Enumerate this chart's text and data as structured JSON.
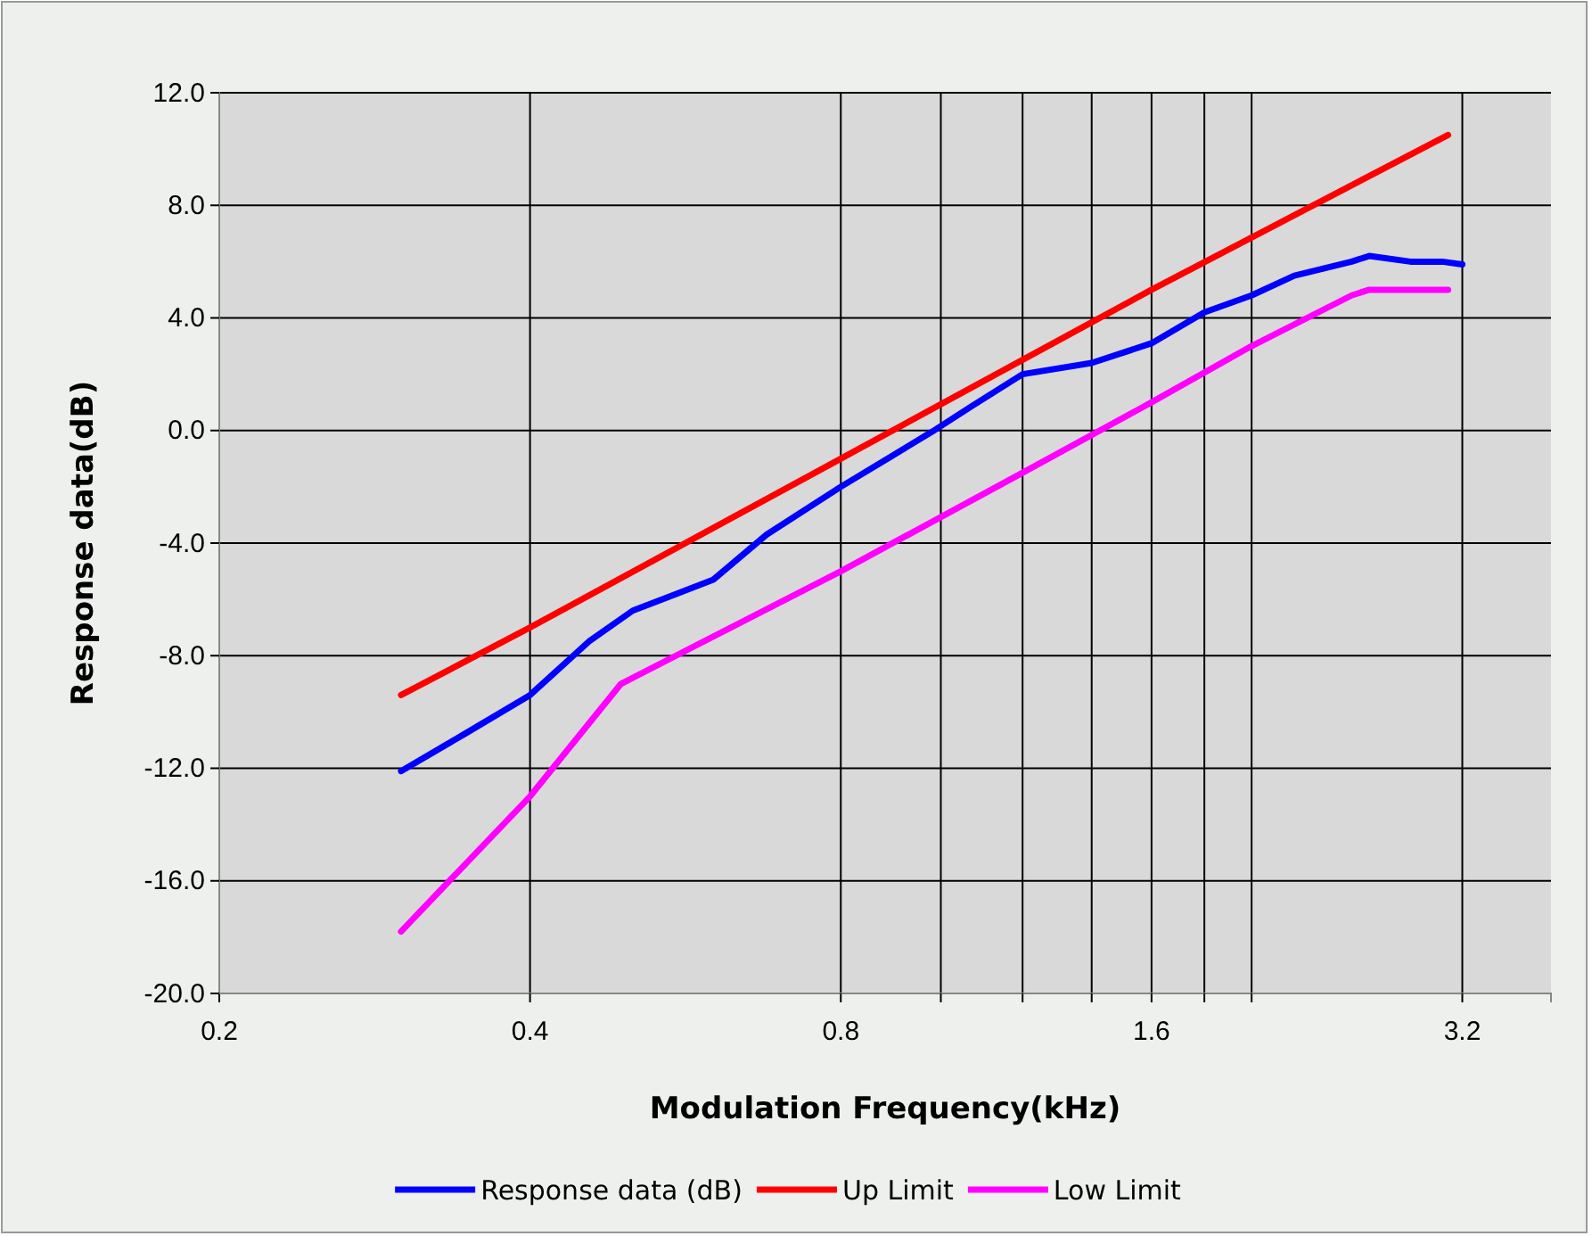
{
  "chart_data": {
    "type": "line",
    "xlabel": "Modulation Frequency(kHz)",
    "ylabel": "Response data(dB)",
    "log": "x",
    "grid": true,
    "legend": "bottom",
    "marker": "none",
    "line_style": "solid",
    "xlim": [
      0.2,
      3.9
    ],
    "xticks": [
      0.2,
      0.4,
      0.8,
      {
        "value": 1.0,
        "label": null
      },
      {
        "value": 1.2,
        "label": null
      },
      {
        "value": 1.4,
        "label": null
      },
      1.6,
      {
        "value": 1.8,
        "label": null
      },
      {
        "value": 2.0,
        "label": null
      },
      3.2
    ],
    "ylim": [
      -20,
      12
    ],
    "yticks": [
      {
        "value": -20,
        "label": "-20.0"
      },
      {
        "value": -16,
        "label": "-16.0"
      },
      {
        "value": -12,
        "label": "-12.0"
      },
      {
        "value": -8,
        "label": "-8.0"
      },
      {
        "value": -4,
        "label": "-4.0"
      },
      {
        "value": 0,
        "label": "0.0"
      },
      {
        "value": 4,
        "label": "4.0"
      },
      {
        "value": 8,
        "label": "8.0"
      },
      {
        "value": 12,
        "label": "12.0"
      }
    ],
    "series": [
      {
        "name": "Response data (dB)",
        "color": "#0000ff",
        "x": [
          0.3,
          0.345,
          0.4,
          0.456,
          0.503,
          0.602,
          0.678,
          0.8,
          0.897,
          0.98,
          1.07,
          1.2,
          1.4,
          1.6,
          1.8,
          2.0,
          2.2,
          2.5,
          2.6,
          2.85,
          3.06,
          3.2
        ],
        "values": [
          -12.1,
          -10.8,
          -9.4,
          -7.5,
          -6.4,
          -5.3,
          -3.7,
          -2.0,
          -0.9,
          -0.05,
          0.85,
          2.0,
          2.4,
          3.1,
          4.2,
          4.8,
          5.5,
          6.0,
          6.2,
          6.0,
          6.0,
          5.9
        ]
      },
      {
        "name": "Up Limit",
        "color": "#ff0000",
        "x": [
          0.3,
          0.4,
          0.8,
          1.6,
          3.1
        ],
        "values": [
          -9.4,
          -7.0,
          -1.0,
          5.0,
          10.5
        ]
      },
      {
        "name": "Low Limit",
        "color": "#ff00ff",
        "x": [
          0.3,
          0.4,
          0.49,
          0.8,
          1.2,
          1.6,
          2.0,
          2.5,
          2.6,
          3.1
        ],
        "values": [
          -17.8,
          -13.0,
          -9.0,
          -5.0,
          -1.5,
          1.0,
          3.0,
          4.8,
          5.0,
          5.0
        ]
      }
    ]
  }
}
